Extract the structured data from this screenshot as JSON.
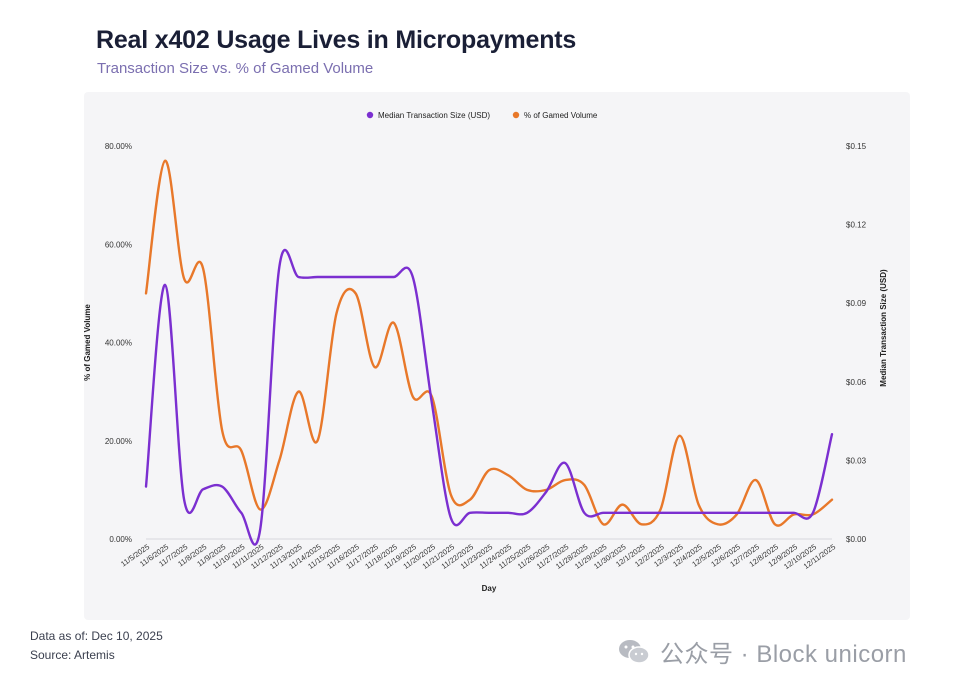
{
  "title": "Real x402 Usage Lives in Micropayments",
  "subtitle": "Transaction Size vs. % of Gamed Volume",
  "footer": {
    "data_as_of": "Data as of: Dec 10, 2025",
    "source": "Source: Artemis"
  },
  "watermark": {
    "text": "公众号 · Block unicorn",
    "icon": "wechat-icon"
  },
  "chart_data": {
    "type": "line",
    "x": [
      "11/5/2025",
      "11/6/2025",
      "11/7/2025",
      "11/8/2025",
      "11/9/2025",
      "11/10/2025",
      "11/11/2025",
      "11/12/2025",
      "11/13/2025",
      "11/14/2025",
      "11/15/2025",
      "11/16/2025",
      "11/17/2025",
      "11/18/2025",
      "11/19/2025",
      "11/20/2025",
      "11/21/2025",
      "11/22/2025",
      "11/23/2025",
      "11/24/2025",
      "11/25/2025",
      "11/26/2025",
      "11/27/2025",
      "11/28/2025",
      "11/29/2025",
      "11/30/2025",
      "12/1/2025",
      "12/2/2025",
      "12/3/2025",
      "12/4/2025",
      "12/5/2025",
      "12/6/2025",
      "12/7/2025",
      "12/8/2025",
      "12/9/2025",
      "12/10/2025",
      "12/11/2025"
    ],
    "xlabel": "Day",
    "y_left": {
      "label": "% of  Gamed Volume",
      "range": [
        0,
        80
      ],
      "ticks": [
        "0.00%",
        "20.00%",
        "40.00%",
        "60.00%",
        "80.00%"
      ]
    },
    "y_right": {
      "label": "Median Transaction Size (USD)",
      "range": [
        0,
        0.15
      ],
      "ticks": [
        "$0.00",
        "$0.03",
        "$0.06",
        "$0.09",
        "$0.12",
        "$0.15"
      ]
    },
    "legend": {
      "position": "top-center"
    },
    "series": [
      {
        "name": "Median Transaction Size (USD)",
        "axis": "right",
        "color": "#7b2fd0",
        "values": [
          0.02,
          0.097,
          0.015,
          0.019,
          0.02,
          0.01,
          0.004,
          0.104,
          0.1,
          0.1,
          0.1,
          0.1,
          0.1,
          0.1,
          0.1,
          0.052,
          0.008,
          0.01,
          0.01,
          0.01,
          0.01,
          0.018,
          0.029,
          0.01,
          0.01,
          0.01,
          0.01,
          0.01,
          0.01,
          0.01,
          0.01,
          0.01,
          0.01,
          0.01,
          0.01,
          0.01,
          0.04
        ]
      },
      {
        "name": "% of Gamed Volume",
        "axis": "left",
        "color": "#e8782a",
        "values": [
          50,
          77,
          53,
          55,
          22,
          18,
          6,
          16,
          30,
          20,
          46,
          50,
          35,
          44,
          29,
          29,
          9,
          8,
          14,
          13,
          10,
          10,
          12,
          11,
          3,
          7,
          3,
          6,
          21,
          7,
          3,
          5,
          12,
          3,
          5,
          5,
          8
        ]
      }
    ]
  }
}
